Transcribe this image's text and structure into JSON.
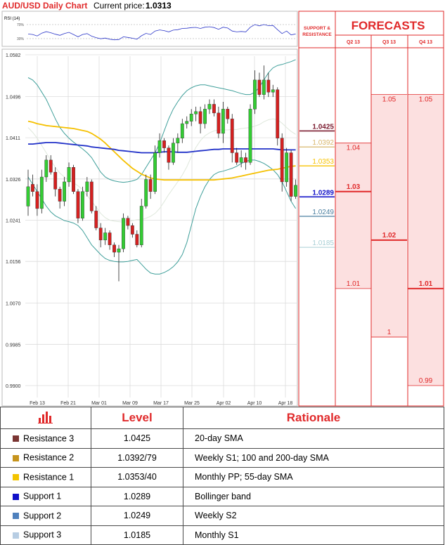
{
  "header": {
    "title": "AUD/USD Daily Chart",
    "price_label": "Current price:",
    "price_value": "1.0313"
  },
  "rsi_label": "RSI (14)",
  "rsi_ticks": [
    "70%",
    "30%"
  ],
  "support_resistance_header": [
    "SUPPORT &",
    "RESISTANCE"
  ],
  "forecasts_title": "FORECASTS",
  "colors": {
    "res3": "#7a1a2e",
    "res2": "#d8b66a",
    "res1": "#f7c200",
    "sup1": "#1010c8",
    "sup2": "#4a7fa0",
    "sup3": "#a7cfd5",
    "bear": "#d52020",
    "bull": "#33cc33",
    "sma200": "#2030c8",
    "sma55": "#f5c000",
    "boll": "#3f9f9a",
    "forecast_red": "#e0292a",
    "forecast_fill": "#fce0e0"
  },
  "chart_data": {
    "type": "candlestick",
    "title": "AUD/USD Daily Chart",
    "y_ticks": [
      "1.0582",
      "1.0496",
      "1.0411",
      "1.0326",
      "1.0241",
      "1.0156",
      "1.0070",
      "0.9985",
      "0.9900"
    ],
    "ylim": [
      0.99,
      1.0582
    ],
    "x_ticks": [
      "Feb 13",
      "Feb 21",
      "Mar 01",
      "Mar 09",
      "Mar 17",
      "Mar 25",
      "Apr 02",
      "Apr 10",
      "Apr 18"
    ],
    "levels": [
      {
        "name": "Resistance 3",
        "value": "1.0425"
      },
      {
        "name": "Resistance 2",
        "value": "1.0392"
      },
      {
        "name": "Resistance 1",
        "value": "1.0353"
      },
      {
        "name": "Support 1",
        "value": "1.0289"
      },
      {
        "name": "Support 2",
        "value": "1.0249"
      },
      {
        "name": "Support 3",
        "value": "1.0185"
      }
    ],
    "forecasts": [
      {
        "quarter": "Q2 13",
        "high": "1.04",
        "median": "1.03",
        "low": "1.01"
      },
      {
        "quarter": "Q3 13",
        "high": "1.05",
        "median": "1.02",
        "low": "1"
      },
      {
        "quarter": "Q4 13",
        "high": "1.05",
        "median": "1.01",
        "low": "0.99"
      }
    ],
    "candles": [
      [
        1.027,
        1.031,
        1.025,
        1.0345
      ],
      [
        1.0315,
        1.03,
        1.029,
        1.0335
      ],
      [
        1.03,
        1.0265,
        1.025,
        1.0315
      ],
      [
        1.0265,
        1.033,
        1.0255,
        1.0345
      ],
      [
        1.033,
        1.0365,
        1.032,
        1.0375
      ],
      [
        1.0365,
        1.034,
        1.0335,
        1.0375
      ],
      [
        1.034,
        1.0305,
        1.029,
        1.035
      ],
      [
        1.0305,
        1.028,
        1.0265,
        1.031
      ],
      [
        1.028,
        1.032,
        1.027,
        1.033
      ],
      [
        1.032,
        1.035,
        1.031,
        1.036
      ],
      [
        1.035,
        1.03,
        1.0295,
        1.0355
      ],
      [
        1.03,
        1.0245,
        1.0235,
        1.0305
      ],
      [
        1.0245,
        1.03,
        1.024,
        1.031
      ],
      [
        1.03,
        1.032,
        1.029,
        1.033
      ],
      [
        1.032,
        1.026,
        1.0255,
        1.0325
      ],
      [
        1.026,
        1.0225,
        1.022,
        1.027
      ],
      [
        1.0225,
        1.02,
        1.0185,
        1.0235
      ],
      [
        1.02,
        1.0215,
        1.019,
        1.0225
      ],
      [
        1.0215,
        1.019,
        1.018,
        1.022
      ],
      [
        1.019,
        1.0175,
        1.0165,
        1.0195
      ],
      [
        1.0175,
        1.0182,
        1.0115,
        1.019
      ],
      [
        1.0182,
        1.0245,
        1.0175,
        1.0255
      ],
      [
        1.0245,
        1.023,
        1.0222,
        1.025
      ],
      [
        1.023,
        1.0212,
        1.0205,
        1.0235
      ],
      [
        1.0212,
        1.019,
        1.0185,
        1.022
      ],
      [
        1.019,
        1.027,
        1.0185,
        1.0285
      ],
      [
        1.027,
        1.0325,
        1.0265,
        1.0335
      ],
      [
        1.0325,
        1.03,
        1.0285,
        1.0335
      ],
      [
        1.03,
        1.038,
        1.0295,
        1.0395
      ],
      [
        1.038,
        1.0405,
        1.037,
        1.042
      ],
      [
        1.0405,
        1.039,
        1.038,
        1.041
      ],
      [
        1.039,
        1.036,
        1.0345,
        1.0395
      ],
      [
        1.036,
        1.04,
        1.0355,
        1.041
      ],
      [
        1.04,
        1.041,
        1.038,
        1.042
      ],
      [
        1.041,
        1.044,
        1.04,
        1.045
      ],
      [
        1.044,
        1.0445,
        1.043,
        1.0455
      ],
      [
        1.0445,
        1.046,
        1.0435,
        1.047
      ],
      [
        1.046,
        1.0465,
        1.0445,
        1.0475
      ],
      [
        1.0465,
        1.044,
        1.042,
        1.0475
      ],
      [
        1.044,
        1.047,
        1.043,
        1.048
      ],
      [
        1.047,
        1.048,
        1.046,
        1.049
      ],
      [
        1.048,
        1.0462,
        1.0455,
        1.049
      ],
      [
        1.0462,
        1.042,
        1.041,
        1.0475
      ],
      [
        1.042,
        1.047,
        1.04,
        1.0485
      ],
      [
        1.047,
        1.045,
        1.044,
        1.0475
      ],
      [
        1.045,
        1.038,
        1.036,
        1.046
      ],
      [
        1.038,
        1.036,
        1.0355,
        1.039
      ],
      [
        1.036,
        1.037,
        1.035,
        1.0385
      ],
      [
        1.037,
        1.036,
        1.0345,
        1.038
      ],
      [
        1.036,
        1.047,
        1.0355,
        1.048
      ],
      [
        1.047,
        1.053,
        1.046,
        1.055
      ],
      [
        1.053,
        1.05,
        1.0495,
        1.0545
      ],
      [
        1.05,
        1.053,
        1.049,
        1.056
      ],
      [
        1.053,
        1.0505,
        1.0495,
        1.0545
      ],
      [
        1.0505,
        1.051,
        1.0495,
        1.052
      ],
      [
        1.051,
        1.041,
        1.0395,
        1.0515
      ],
      [
        1.041,
        1.032,
        1.03,
        1.042
      ],
      [
        1.032,
        1.038,
        1.031,
        1.039
      ],
      [
        1.038,
        1.029,
        1.028,
        1.0385
      ],
      [
        1.029,
        1.0313,
        1.0285,
        1.0325
      ]
    ],
    "sma200": [
      1.0398,
      1.0398,
      1.0399,
      1.04,
      1.0401,
      1.0401,
      1.0401,
      1.04,
      1.0399,
      1.0398,
      1.0397,
      1.0396,
      1.0395,
      1.0394,
      1.0392,
      1.0391,
      1.039,
      1.0389,
      1.0388,
      1.0387,
      1.0385,
      1.0384,
      1.0383,
      1.0382,
      1.0381,
      1.038,
      1.038,
      1.038,
      1.038,
      1.0381,
      1.0382,
      1.0382,
      1.0382,
      1.0381,
      1.0381,
      1.0381,
      1.0382,
      1.0383,
      1.0384,
      1.0385,
      1.0386,
      1.0387,
      1.0387,
      1.0388,
      1.0388,
      1.0388,
      1.0388,
      1.0388,
      1.0388,
      1.0388,
      1.0388,
      1.0388,
      1.0388,
      1.0388,
      1.0388,
      1.0387,
      1.0386,
      1.0386,
      1.0386,
      1.0386
    ],
    "sma55": [
      1.0445,
      1.0443,
      1.044,
      1.0438,
      1.0436,
      1.0435,
      1.0434,
      1.0433,
      1.0432,
      1.0431,
      1.043,
      1.0428,
      1.0426,
      1.0424,
      1.042,
      1.0414,
      1.0408,
      1.04,
      1.0391,
      1.0382,
      1.0373,
      1.0364,
      1.0356,
      1.0348,
      1.0342,
      1.0336,
      1.0332,
      1.0328,
      1.0326,
      1.0325,
      1.0324,
      1.0324,
      1.0324,
      1.0324,
      1.0324,
      1.0324,
      1.0324,
      1.0324,
      1.0324,
      1.0324,
      1.0324,
      1.0324,
      1.0325,
      1.0326,
      1.0327,
      1.0328,
      1.033,
      1.0332,
      1.0334,
      1.0336,
      1.0338,
      1.034,
      1.0342,
      1.0344,
      1.0345,
      1.0346,
      1.0348,
      1.035,
      1.0352,
      1.0353
    ],
    "boll_upper": [
      1.0535,
      1.053,
      1.052,
      1.0505,
      1.049,
      1.047,
      1.045,
      1.0432,
      1.042,
      1.041,
      1.0402,
      1.0395,
      1.0388,
      1.038,
      1.037,
      1.0355,
      1.034,
      1.033,
      1.0325,
      1.0322,
      1.032,
      1.0319,
      1.032,
      1.0322,
      1.0325,
      1.0335,
      1.035,
      1.0365,
      1.038,
      1.04,
      1.0425,
      1.045,
      1.047,
      1.0485,
      1.0498,
      1.0508,
      1.0514,
      1.0518,
      1.052,
      1.052,
      1.0518,
      1.0516,
      1.0514,
      1.0512,
      1.051,
      1.0508,
      1.0505,
      1.0502,
      1.05,
      1.05,
      1.0505,
      1.0515,
      1.053,
      1.0545,
      1.0555,
      1.056,
      1.0562,
      1.0565,
      1.0568,
      1.0572
    ],
    "boll_lower": [
      1.033,
      1.0315,
      1.03,
      1.0285,
      1.027,
      1.0258,
      1.025,
      1.0245,
      1.024,
      1.0238,
      1.0235,
      1.023,
      1.022,
      1.0205,
      1.019,
      1.018,
      1.017,
      1.0162,
      1.0158,
      1.0156,
      1.0155,
      1.0155,
      1.0156,
      1.0158,
      1.016,
      1.015,
      1.014,
      1.0132,
      1.013,
      1.013,
      1.0133,
      1.0138,
      1.0145,
      1.0155,
      1.017,
      1.0195,
      1.023,
      1.0265,
      1.029,
      1.031,
      1.0325,
      1.0335,
      1.034,
      1.0342,
      1.0345,
      1.0348,
      1.0352,
      1.0358,
      1.0362,
      1.0365,
      1.0365,
      1.0362,
      1.0358,
      1.0352,
      1.0345,
      1.0335,
      1.032,
      1.03,
      1.028,
      1.0265
    ],
    "boll_mid": [
      1.0432,
      1.0422,
      1.041,
      1.0395,
      1.038,
      1.0364,
      1.035,
      1.0338,
      1.033,
      1.0324,
      1.0318,
      1.0312,
      1.0304,
      1.0292,
      1.028,
      1.0268,
      1.0255,
      1.0246,
      1.0241,
      1.0239,
      1.0238,
      1.0237,
      1.0238,
      1.024,
      1.0242,
      1.0242,
      1.0245,
      1.0249,
      1.0255,
      1.0265,
      1.0279,
      1.0294,
      1.0307,
      1.032,
      1.0334,
      1.0351,
      1.0372,
      1.0391,
      1.0405,
      1.0415,
      1.0421,
      1.0425,
      1.0427,
      1.0427,
      1.0427,
      1.0428,
      1.0428,
      1.043,
      1.0431,
      1.0432,
      1.0435,
      1.0438,
      1.0444,
      1.0448,
      1.045,
      1.0448,
      1.0441,
      1.0432,
      1.0424,
      1.0418
    ]
  },
  "table": {
    "headers": {
      "level": "Level",
      "rationale": "Rationale"
    },
    "rows": [
      {
        "name": "Resistance 3",
        "level": "1.0425",
        "rationale": "20-day SMA",
        "color": "#7a3533"
      },
      {
        "name": "Resistance 2",
        "level": "1.0392/79",
        "rationale": "Weekly S1; 100 and 200-day SMA",
        "color": "#c6941d"
      },
      {
        "name": "Resistance 1",
        "level": "1.0353/40",
        "rationale": "Monthly PP; 55-day SMA",
        "color": "#f3c400"
      },
      {
        "name": "Support 1",
        "level": "1.0289",
        "rationale": "Bollinger band",
        "color": "#1010c8"
      },
      {
        "name": "Support 2",
        "level": "1.0249",
        "rationale": "Weekly S2",
        "color": "#4f81bd"
      },
      {
        "name": "Support 3",
        "level": "1.0185",
        "rationale": "Monthly S1",
        "color": "#b7cde3"
      }
    ]
  }
}
